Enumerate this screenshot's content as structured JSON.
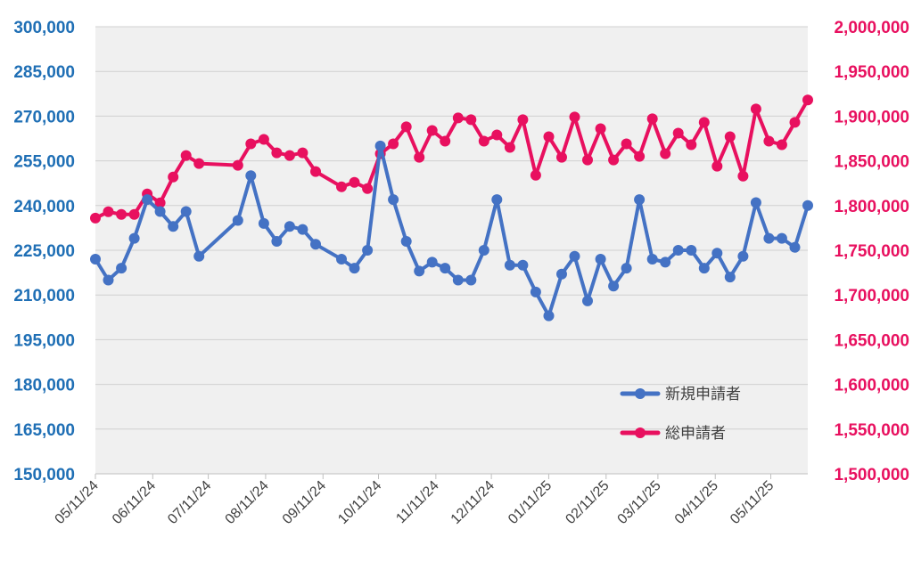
{
  "chart_data": {
    "type": "line",
    "title": "",
    "xlabel": "",
    "ylabel": "",
    "x_ticks": [
      "05/11/24",
      "06/11/24",
      "07/11/24",
      "08/11/24",
      "09/11/24",
      "10/11/24",
      "11/11/24",
      "12/11/24",
      "01/11/25",
      "02/11/25",
      "03/11/25",
      "04/11/25",
      "05/11/25"
    ],
    "y_left": {
      "ylim": [
        150000,
        300000
      ],
      "ticks": [
        "150,000",
        "165,000",
        "180,000",
        "195,000",
        "210,000",
        "225,000",
        "240,000",
        "255,000",
        "270,000",
        "285,000",
        "300,000"
      ],
      "color": "#1f6fb5"
    },
    "y_right": {
      "ylim": [
        1500000,
        2000000
      ],
      "ticks": [
        "1,500,000",
        "1,550,000",
        "1,600,000",
        "1,650,000",
        "1,700,000",
        "1,750,000",
        "1,800,000",
        "1,850,000",
        "1,900,000",
        "1,950,000",
        "2,000,000"
      ],
      "color": "#e8105f"
    },
    "grid": true,
    "legend_position": "bottom-right",
    "series": [
      {
        "name": "新規申請者",
        "axis": "left",
        "color": "#4472c4",
        "points": [
          [
            "2024-05-11",
            222000
          ],
          [
            "2024-05-18",
            215000
          ],
          [
            "2024-05-25",
            219000
          ],
          [
            "2024-06-01",
            229000
          ],
          [
            "2024-06-08",
            242000
          ],
          [
            "2024-06-15",
            238000
          ],
          [
            "2024-06-22",
            233000
          ],
          [
            "2024-06-29",
            238000
          ],
          [
            "2024-07-06",
            223000
          ],
          [
            "2024-07-27",
            235000
          ],
          [
            "2024-08-03",
            250000
          ],
          [
            "2024-08-10",
            234000
          ],
          [
            "2024-08-17",
            228000
          ],
          [
            "2024-08-24",
            233000
          ],
          [
            "2024-08-31",
            232000
          ],
          [
            "2024-09-07",
            227000
          ],
          [
            "2024-09-21",
            222000
          ],
          [
            "2024-09-28",
            219000
          ],
          [
            "2024-10-05",
            225000
          ],
          [
            "2024-10-12",
            260000
          ],
          [
            "2024-10-19",
            242000
          ],
          [
            "2024-10-26",
            228000
          ],
          [
            "2024-11-02",
            218000
          ],
          [
            "2024-11-09",
            221000
          ],
          [
            "2024-11-16",
            219000
          ],
          [
            "2024-11-23",
            215000
          ],
          [
            "2024-11-30",
            215000
          ],
          [
            "2024-12-07",
            225000
          ],
          [
            "2024-12-14",
            242000
          ],
          [
            "2024-12-21",
            220000
          ],
          [
            "2024-12-28",
            220000
          ],
          [
            "2025-01-04",
            211000
          ],
          [
            "2025-01-11",
            203000
          ],
          [
            "2025-01-18",
            217000
          ],
          [
            "2025-01-25",
            223000
          ],
          [
            "2025-02-01",
            208000
          ],
          [
            "2025-02-08",
            222000
          ],
          [
            "2025-02-15",
            213000
          ],
          [
            "2025-02-22",
            219000
          ],
          [
            "2025-03-01",
            242000
          ],
          [
            "2025-03-08",
            222000
          ],
          [
            "2025-03-15",
            221000
          ],
          [
            "2025-03-22",
            225000
          ],
          [
            "2025-03-29",
            225000
          ],
          [
            "2025-04-05",
            219000
          ],
          [
            "2025-04-12",
            224000
          ],
          [
            "2025-04-19",
            216000
          ],
          [
            "2025-04-26",
            223000
          ],
          [
            "2025-05-03",
            241000
          ],
          [
            "2025-05-10",
            229000
          ],
          [
            "2025-05-17",
            229000
          ],
          [
            "2025-05-24",
            226000
          ],
          [
            "2025-05-31",
            240000
          ]
        ]
      },
      {
        "name": "総申請者",
        "axis": "right",
        "color": "#e8105f",
        "points": [
          [
            "2024-05-11",
            1786000
          ],
          [
            "2024-05-18",
            1793000
          ],
          [
            "2024-05-25",
            1790000
          ],
          [
            "2024-06-01",
            1790000
          ],
          [
            "2024-06-08",
            1813000
          ],
          [
            "2024-06-15",
            1803000
          ],
          [
            "2024-06-22",
            1832000
          ],
          [
            "2024-06-29",
            1856000
          ],
          [
            "2024-07-06",
            1847000
          ],
          [
            "2024-07-27",
            1845000
          ],
          [
            "2024-08-03",
            1869000
          ],
          [
            "2024-08-10",
            1874000
          ],
          [
            "2024-08-17",
            1859000
          ],
          [
            "2024-08-24",
            1856000
          ],
          [
            "2024-08-31",
            1859000
          ],
          [
            "2024-09-07",
            1838000
          ],
          [
            "2024-09-21",
            1821000
          ],
          [
            "2024-09-28",
            1826000
          ],
          [
            "2024-10-05",
            1819000
          ],
          [
            "2024-10-12",
            1858000
          ],
          [
            "2024-10-19",
            1869000
          ],
          [
            "2024-10-26",
            1888000
          ],
          [
            "2024-11-02",
            1854000
          ],
          [
            "2024-11-09",
            1884000
          ],
          [
            "2024-11-16",
            1872000
          ],
          [
            "2024-11-23",
            1898000
          ],
          [
            "2024-11-30",
            1896000
          ],
          [
            "2024-12-07",
            1872000
          ],
          [
            "2024-12-14",
            1879000
          ],
          [
            "2024-12-21",
            1865000
          ],
          [
            "2024-12-28",
            1896000
          ],
          [
            "2025-01-04",
            1834000
          ],
          [
            "2025-01-11",
            1877000
          ],
          [
            "2025-01-18",
            1854000
          ],
          [
            "2025-01-25",
            1899000
          ],
          [
            "2025-02-01",
            1851000
          ],
          [
            "2025-02-08",
            1886000
          ],
          [
            "2025-02-15",
            1851000
          ],
          [
            "2025-02-22",
            1869000
          ],
          [
            "2025-03-01",
            1855000
          ],
          [
            "2025-03-08",
            1897000
          ],
          [
            "2025-03-15",
            1858000
          ],
          [
            "2025-03-22",
            1881000
          ],
          [
            "2025-03-29",
            1868000
          ],
          [
            "2025-04-05",
            1893000
          ],
          [
            "2025-04-12",
            1844000
          ],
          [
            "2025-04-19",
            1877000
          ],
          [
            "2025-04-26",
            1833000
          ],
          [
            "2025-05-03",
            1908000
          ],
          [
            "2025-05-10",
            1872000
          ],
          [
            "2025-05-17",
            1868000
          ],
          [
            "2025-05-24",
            1893000
          ],
          [
            "2025-05-31",
            1918000
          ]
        ]
      }
    ]
  }
}
